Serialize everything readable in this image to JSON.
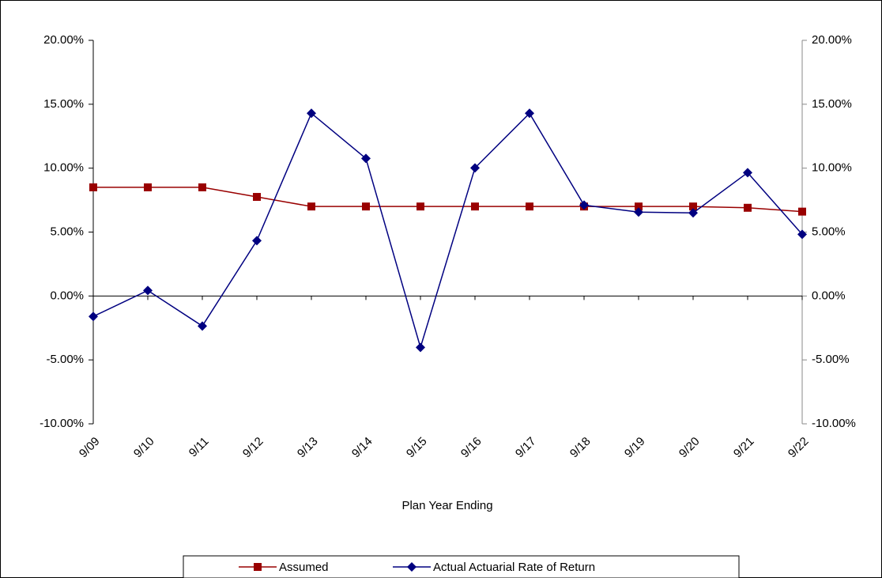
{
  "chart_data": {
    "type": "line",
    "categories": [
      "9/09",
      "9/10",
      "9/11",
      "9/12",
      "9/13",
      "9/14",
      "9/15",
      "9/16",
      "9/17",
      "9/18",
      "9/19",
      "9/20",
      "9/21",
      "9/22"
    ],
    "series": [
      {
        "name": "Assumed",
        "color": "#990000",
        "marker": "square",
        "values": [
          8.5,
          8.5,
          8.5,
          7.75,
          7.0,
          7.0,
          7.0,
          7.0,
          7.0,
          7.0,
          7.0,
          7.0,
          6.9,
          6.6
        ]
      },
      {
        "name": "Actual Actuarial Rate of Return",
        "color": "#000080",
        "marker": "diamond",
        "values": [
          -1.6,
          0.43,
          -2.35,
          4.33,
          14.29,
          10.76,
          -4.02,
          10.02,
          14.29,
          7.11,
          6.56,
          6.5,
          9.65,
          4.82
        ]
      }
    ],
    "ylim": [
      -10,
      20
    ],
    "yticks": [
      {
        "value": -10,
        "label": "-10.00%"
      },
      {
        "value": -5,
        "label": "-5.00%"
      },
      {
        "value": 0,
        "label": "0.00%"
      },
      {
        "value": 5,
        "label": "5.00%"
      },
      {
        "value": 10,
        "label": "10.00%"
      },
      {
        "value": 15,
        "label": "15.00%"
      },
      {
        "value": 20,
        "label": "20.00%"
      }
    ],
    "y2lim": [
      -10,
      20
    ],
    "y2ticks": [
      {
        "value": -10,
        "label": "-10.00%"
      },
      {
        "value": -5,
        "label": "-5.00%"
      },
      {
        "value": 0,
        "label": "0.00%"
      },
      {
        "value": 5,
        "label": "5.00%"
      },
      {
        "value": 10,
        "label": "10.00%"
      },
      {
        "value": 15,
        "label": "15.00%"
      },
      {
        "value": 20,
        "label": "20.00%"
      }
    ],
    "xlabel": "Plan Year Ending",
    "legend": "bottom",
    "grid": false
  }
}
